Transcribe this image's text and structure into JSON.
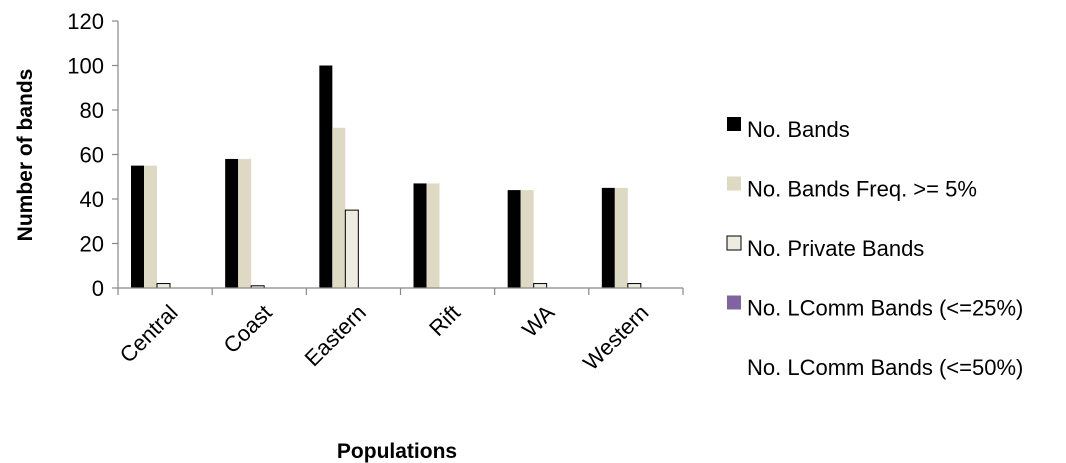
{
  "chart_data": {
    "type": "bar",
    "title": "",
    "xlabel": "Populations",
    "ylabel": "Number  of bands",
    "ylim": [
      0,
      120
    ],
    "yticks": [
      0,
      20,
      40,
      60,
      80,
      100,
      120
    ],
    "grid": false,
    "legend_position": "right",
    "categories": [
      "Central",
      "Coast",
      "Eastern",
      "Rift",
      "WA",
      "Western"
    ],
    "series": [
      {
        "name": "No. Bands",
        "values": [
          55,
          58,
          100,
          47,
          44,
          45
        ],
        "color": "#000000"
      },
      {
        "name": "No. Bands Freq. >= 5%",
        "values": [
          55,
          58,
          72,
          47,
          44,
          45
        ],
        "color": "#ddd9c3"
      },
      {
        "name": "No. Private Bands",
        "values": [
          2,
          1,
          35,
          0,
          2,
          2
        ],
        "color": "#eeece1"
      },
      {
        "name": "No. LComm Bands (<=25%)",
        "values": [
          0,
          0,
          0,
          0,
          0,
          0
        ],
        "color": "#8064a2"
      },
      {
        "name": "No. LComm Bands (<=50%)",
        "values": [
          0,
          0,
          0,
          0,
          0,
          0
        ],
        "color": "#ffffff"
      }
    ]
  }
}
